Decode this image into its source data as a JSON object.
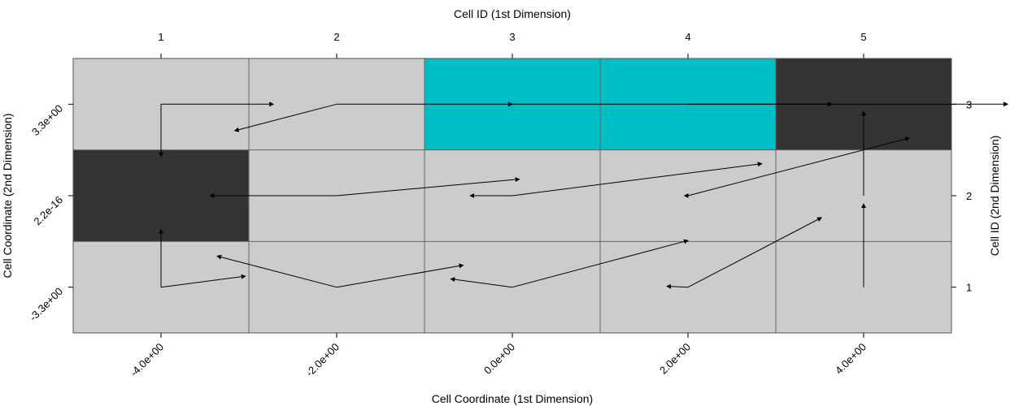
{
  "chart_data": {
    "type": "heatmap",
    "title_top": "Cell ID (1st Dimension)",
    "xlabel": "Cell Coordinate (1st Dimension)",
    "ylabel": "Cell Coordinate (2nd Dimension)",
    "ylabel_right": "Cell ID (2nd Dimension)",
    "x_ids": [
      "1",
      "2",
      "3",
      "4",
      "5"
    ],
    "y_ids": [
      "1",
      "2",
      "3"
    ],
    "x_coords": [
      "-4.0e+00",
      "-2.0e+00",
      "0.0e+00",
      "2.0e+00",
      "4.0e+00"
    ],
    "y_coords": [
      "-3.3e+00",
      "2.2e-16",
      "3.3e+00"
    ],
    "palette": {
      "default": "#cccccc",
      "dark": "#333333",
      "cyan": "#00bfc4"
    },
    "cells": [
      {
        "col": 1,
        "row": 1,
        "fill": "default"
      },
      {
        "col": 2,
        "row": 1,
        "fill": "default"
      },
      {
        "col": 3,
        "row": 1,
        "fill": "default"
      },
      {
        "col": 4,
        "row": 1,
        "fill": "default"
      },
      {
        "col": 5,
        "row": 1,
        "fill": "default"
      },
      {
        "col": 1,
        "row": 2,
        "fill": "dark"
      },
      {
        "col": 2,
        "row": 2,
        "fill": "default"
      },
      {
        "col": 3,
        "row": 2,
        "fill": "default"
      },
      {
        "col": 4,
        "row": 2,
        "fill": "default"
      },
      {
        "col": 5,
        "row": 2,
        "fill": "default"
      },
      {
        "col": 1,
        "row": 3,
        "fill": "default"
      },
      {
        "col": 2,
        "row": 3,
        "fill": "default"
      },
      {
        "col": 3,
        "row": 3,
        "fill": "cyan"
      },
      {
        "col": 4,
        "row": 3,
        "fill": "cyan"
      },
      {
        "col": 5,
        "row": 3,
        "fill": "dark"
      }
    ],
    "vectors": [
      {
        "col": 1,
        "row": 1,
        "paths": [
          [
            [
              0,
              0
            ],
            [
              0,
              0.63
            ]
          ],
          [
            [
              0,
              0
            ],
            [
              0.48,
              0.12
            ]
          ]
        ]
      },
      {
        "col": 2,
        "row": 1,
        "paths": [
          [
            [
              0,
              0
            ],
            [
              -0.68,
              0.34
            ]
          ],
          [
            [
              0,
              0
            ],
            [
              0.72,
              0.24
            ]
          ]
        ]
      },
      {
        "col": 3,
        "row": 1,
        "paths": [
          [
            [
              0,
              0
            ],
            [
              -0.35,
              0.09
            ]
          ],
          [
            [
              0,
              0
            ],
            [
              1.0,
              0.51
            ]
          ]
        ]
      },
      {
        "col": 4,
        "row": 1,
        "paths": [
          [
            [
              0,
              0
            ],
            [
              -0.12,
              0.01
            ]
          ],
          [
            [
              0,
              0
            ],
            [
              0.76,
              0.76
            ]
          ]
        ]
      },
      {
        "col": 5,
        "row": 1,
        "paths": [
          [
            [
              0,
              0
            ],
            [
              0,
              0.91
            ]
          ]
        ]
      },
      {
        "col": 2,
        "row": 2,
        "paths": [
          [
            [
              0,
              0
            ],
            [
              -0.72,
              0
            ]
          ],
          [
            [
              0,
              0
            ],
            [
              1.04,
              0.18
            ]
          ]
        ]
      },
      {
        "col": 3,
        "row": 2,
        "paths": [
          [
            [
              0,
              0
            ],
            [
              -0.24,
              0
            ]
          ],
          [
            [
              0,
              0
            ],
            [
              1.42,
              0.35
            ]
          ]
        ]
      },
      {
        "col": 4,
        "row": 2,
        "paths": [
          [
            [
              0,
              0
            ],
            [
              -0.02,
              0
            ]
          ],
          [
            [
              0,
              0
            ],
            [
              1.26,
              0.63
            ]
          ]
        ]
      },
      {
        "col": 5,
        "row": 2,
        "paths": [
          [
            [
              0,
              0
            ],
            [
              0,
              0.92
            ]
          ]
        ]
      },
      {
        "col": 1,
        "row": 3,
        "paths": [
          [
            [
              0,
              0
            ],
            [
              0.64,
              0
            ]
          ],
          [
            [
              0,
              0
            ],
            [
              0,
              -0.57
            ]
          ]
        ]
      },
      {
        "col": 2,
        "row": 3,
        "paths": [
          [
            [
              0,
              0
            ],
            [
              -0.58,
              -0.29
            ]
          ],
          [
            [
              0,
              0
            ],
            [
              1.0,
              0
            ]
          ]
        ]
      },
      {
        "col": 3,
        "row": 3,
        "paths": [
          [
            [
              0,
              0
            ],
            [
              1.82,
              0
            ]
          ]
        ]
      },
      {
        "col": 4,
        "row": 3,
        "paths": [
          [
            [
              0,
              0
            ],
            [
              1.82,
              0
            ]
          ]
        ]
      }
    ]
  }
}
